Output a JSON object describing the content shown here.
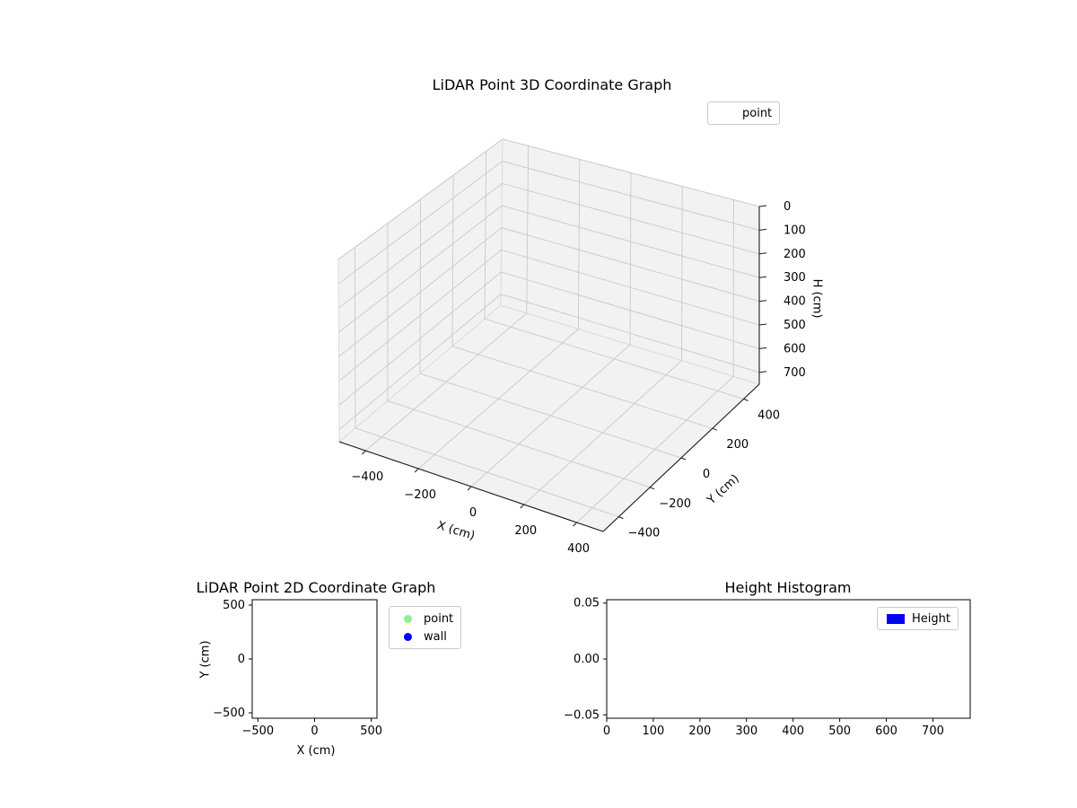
{
  "figure": {
    "background": "#ffffff"
  },
  "plot3d": {
    "title": "LiDAR Point 3D Coordinate Graph",
    "xlabel": "X (cm)",
    "ylabel": "Y (cm)",
    "zlabel": "H (cm)",
    "xlim": [
      -500,
      500
    ],
    "ylim": [
      -500,
      500
    ],
    "zlim": [
      0,
      750
    ],
    "zaxis_inverted": true,
    "xticks": [
      -400,
      -200,
      0,
      200,
      400
    ],
    "xtick_labels": [
      "−400",
      "−200",
      "0",
      "200",
      "400"
    ],
    "yticks": [
      -400,
      -200,
      0,
      200,
      400
    ],
    "ytick_labels": [
      "−400",
      "−200",
      "0",
      "200",
      "400"
    ],
    "zticks": [
      0,
      100,
      200,
      300,
      400,
      500,
      600,
      700
    ],
    "ztick_labels": [
      "0",
      "100",
      "200",
      "300",
      "400",
      "500",
      "600",
      "700"
    ],
    "pane_color": "#f2f2f2",
    "grid_color": "#c9c9c9",
    "legend": {
      "items": [
        {
          "label": "point",
          "marker": "none"
        }
      ]
    }
  },
  "plot2d": {
    "title": "LiDAR Point 2D Coordinate Graph",
    "xlabel": "X (cm)",
    "ylabel": "Y (cm)",
    "xlim": [
      -550,
      550
    ],
    "ylim": [
      -550,
      550
    ],
    "xticks": [
      -500,
      0,
      500
    ],
    "xtick_labels": [
      "−500",
      "0",
      "500"
    ],
    "yticks": [
      -500,
      0,
      500
    ],
    "ytick_labels": [
      "−500",
      "0",
      "500"
    ],
    "legend": {
      "items": [
        {
          "label": "point",
          "color": "#90ee90",
          "marker": "dot"
        },
        {
          "label": "wall",
          "color": "#0000ff",
          "marker": "dot"
        }
      ]
    }
  },
  "hist": {
    "title": "Height Histogram",
    "xlim": [
      0,
      780
    ],
    "ylim": [
      -0.053,
      0.053
    ],
    "xticks": [
      0,
      100,
      200,
      300,
      400,
      500,
      600,
      700
    ],
    "xtick_labels": [
      "0",
      "100",
      "200",
      "300",
      "400",
      "500",
      "600",
      "700"
    ],
    "yticks": [
      -0.05,
      0,
      0.05
    ],
    "ytick_labels": [
      "−0.05",
      "0.00",
      "0.05"
    ],
    "legend": {
      "items": [
        {
          "label": "Height",
          "color": "#0000ff",
          "marker": "rect"
        }
      ]
    }
  },
  "chart_data": [
    {
      "type": "scatter",
      "projection": "3d",
      "title": "LiDAR Point 3D Coordinate Graph",
      "xlabel": "X (cm)",
      "ylabel": "Y (cm)",
      "zlabel": "H (cm)",
      "xlim": [
        -500,
        500
      ],
      "ylim": [
        -500,
        500
      ],
      "zlim": [
        0,
        750
      ],
      "zaxis_inverted": true,
      "xticks": [
        -400,
        -200,
        0,
        200,
        400
      ],
      "yticks": [
        -400,
        -200,
        0,
        200,
        400
      ],
      "zticks": [
        0,
        100,
        200,
        300,
        400,
        500,
        600,
        700
      ],
      "grid": true,
      "legend_position": "upper right",
      "series": [
        {
          "name": "point",
          "points": []
        }
      ]
    },
    {
      "type": "scatter",
      "title": "LiDAR Point 2D Coordinate Graph",
      "xlabel": "X (cm)",
      "ylabel": "Y (cm)",
      "xlim": [
        -550,
        550
      ],
      "ylim": [
        -550,
        550
      ],
      "xticks": [
        -500,
        0,
        500
      ],
      "yticks": [
        -500,
        0,
        500
      ],
      "grid": false,
      "legend_position": "outside upper right",
      "series": [
        {
          "name": "point",
          "color": "#90ee90",
          "points": []
        },
        {
          "name": "wall",
          "color": "#0000ff",
          "points": []
        }
      ]
    },
    {
      "type": "bar",
      "title": "Height Histogram",
      "xlabel": "",
      "ylabel": "",
      "xlim": [
        0,
        780
      ],
      "ylim": [
        -0.05,
        0.05
      ],
      "xticks": [
        0,
        100,
        200,
        300,
        400,
        500,
        600,
        700
      ],
      "yticks": [
        -0.05,
        0,
        0.05
      ],
      "grid": false,
      "legend_position": "upper right",
      "series": [
        {
          "name": "Height",
          "color": "#0000ff",
          "values": []
        }
      ]
    }
  ]
}
